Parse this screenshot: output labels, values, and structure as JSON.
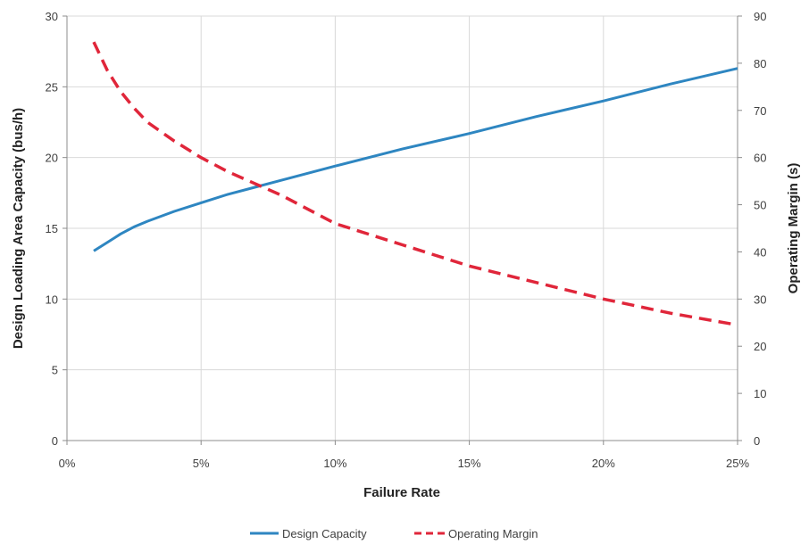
{
  "chart_data": {
    "type": "line",
    "title": "",
    "xlabel": "Failure Rate",
    "ylabel": "Design Loading Area Capacity (bus/h)",
    "y2label": "Operating Margin (s)",
    "xlim": [
      0,
      25
    ],
    "ylim": [
      0,
      30
    ],
    "y2lim": [
      0,
      90
    ],
    "x_ticks": [
      0,
      5,
      10,
      15,
      20,
      25
    ],
    "x_tick_labels": [
      "0%",
      "5%",
      "10%",
      "15%",
      "20%",
      "25%"
    ],
    "y_ticks": [
      0,
      5,
      10,
      15,
      20,
      25,
      30
    ],
    "y_tick_labels": [
      "0",
      "5",
      "10",
      "15",
      "20",
      "25",
      "30"
    ],
    "y2_ticks": [
      0,
      10,
      20,
      30,
      40,
      50,
      60,
      70,
      80,
      90
    ],
    "y2_tick_labels": [
      "0",
      "10",
      "20",
      "30",
      "40",
      "50",
      "60",
      "70",
      "80",
      "90"
    ],
    "grid": true,
    "legend_position": "bottom",
    "series": [
      {
        "name": "Design Capacity",
        "axis": "left",
        "color": "#2e86c1",
        "style": "solid",
        "x": [
          1,
          1.5,
          2,
          2.5,
          3,
          4,
          5,
          6,
          7,
          8,
          10,
          12.5,
          15,
          17.5,
          20,
          22.5,
          25
        ],
        "y": [
          13.4,
          14.0,
          14.6,
          15.1,
          15.5,
          16.2,
          16.8,
          17.4,
          17.9,
          18.4,
          19.4,
          20.6,
          21.7,
          22.9,
          24.0,
          25.2,
          26.3
        ]
      },
      {
        "name": "Operating Margin",
        "axis": "right",
        "color": "#e0263a",
        "style": "dashed",
        "x": [
          1,
          1.5,
          2,
          2.5,
          3,
          4,
          5,
          6,
          7,
          8,
          10,
          12.5,
          15,
          17.5,
          20,
          22.5,
          25
        ],
        "y": [
          84.5,
          78.5,
          74,
          70.5,
          67.5,
          63.5,
          60,
          57,
          54.5,
          52,
          46,
          41.5,
          37,
          33.5,
          30,
          27,
          24.5
        ]
      }
    ]
  }
}
